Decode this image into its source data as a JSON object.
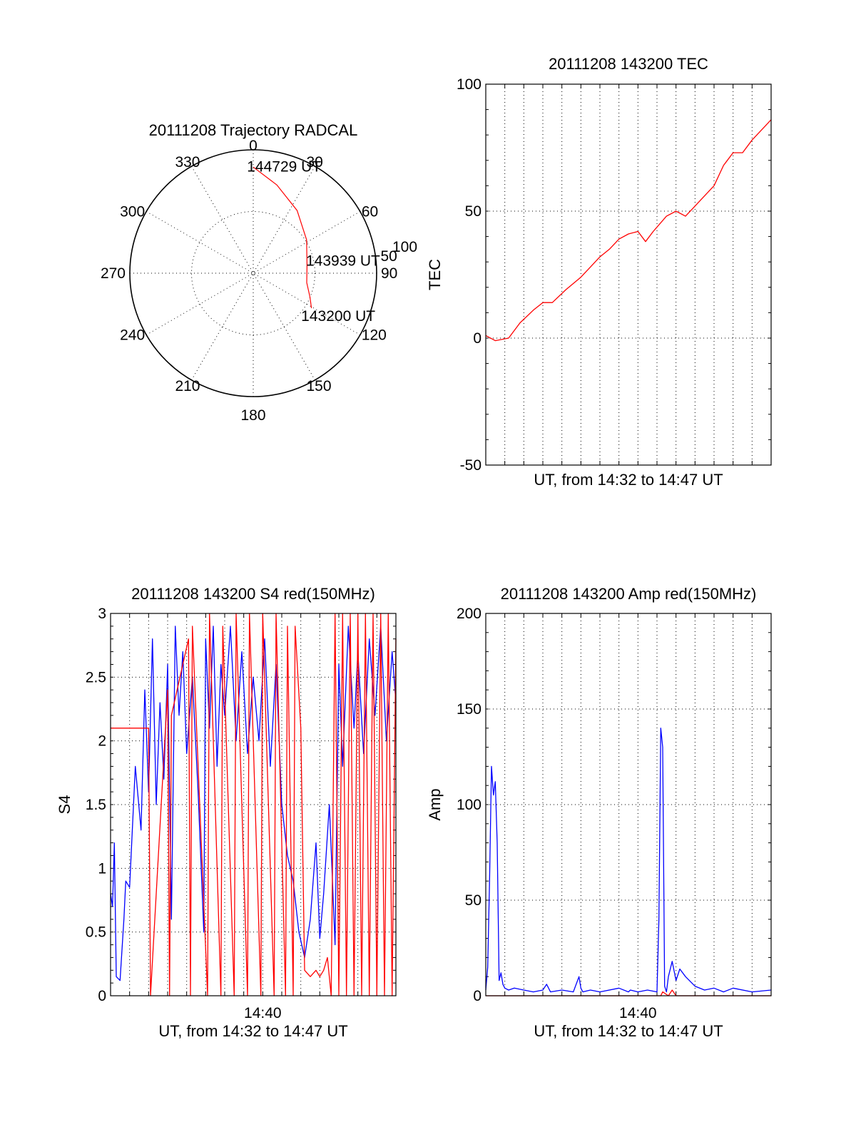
{
  "colors": {
    "red": "#ff0000",
    "blue": "#0000ff",
    "axis": "#000000"
  },
  "chart_data": [
    {
      "type": "polar",
      "title": "20111208 Trajectory RADCAL",
      "azimuth_labels": [
        "0",
        "30",
        "60",
        "90",
        "120",
        "150",
        "180",
        "210",
        "240",
        "270",
        "300",
        "330"
      ],
      "radial_labels": [
        "50",
        "100"
      ],
      "series": [
        {
          "color": "#ff0000",
          "points": [
            {
              "az": 0,
              "zen": 86
            },
            {
              "az": 15,
              "zen": 74
            },
            {
              "az": 35,
              "zen": 62
            },
            {
              "az": 58,
              "zen": 51
            },
            {
              "az": 82,
              "zen": 44
            },
            {
              "az": 100,
              "zen": 44
            },
            {
              "az": 113,
              "zen": 50
            },
            {
              "az": 121,
              "zen": 55
            }
          ]
        }
      ],
      "annotations": [
        {
          "text": "144729 UT",
          "az": 2,
          "zen": 87
        },
        {
          "text": "143939 UT",
          "az": 78,
          "zen": 52
        },
        {
          "text": "143200 UT",
          "az": 126,
          "zen": 58
        }
      ]
    },
    {
      "type": "line",
      "title": "20111208 143200 TEC",
      "xlabel": "UT, from 14:32 to 14:47 UT",
      "ylabel": "TEC",
      "xlim": [
        0,
        15
      ],
      "ylim": [
        -50,
        100
      ],
      "yticks": [
        "100",
        "50",
        "0",
        "-50"
      ],
      "series": [
        {
          "color": "#ff0000",
          "x": [
            0,
            0.5,
            1.2,
            1.8,
            2.5,
            3.0,
            3.5,
            4.2,
            5.0,
            5.5,
            6.0,
            6.5,
            7.0,
            7.5,
            8.0,
            8.4,
            8.8,
            9.5,
            10.0,
            10.5,
            11.0,
            11.5,
            12.0,
            12.5,
            13.0,
            13.5,
            14.0,
            14.5,
            15.0
          ],
          "y": [
            1,
            -1,
            0,
            6,
            11,
            14,
            14,
            19,
            24,
            28,
            32,
            35,
            39,
            41,
            42,
            38,
            42,
            48,
            50,
            48,
            52,
            56,
            60,
            68,
            73,
            73,
            78,
            82,
            86
          ]
        }
      ]
    },
    {
      "type": "line",
      "title": "20111208 143200 S4 red(150MHz)",
      "xlabel": "UT, from 14:32 to 14:47 UT",
      "ylabel": "S4",
      "xtick_labels": [
        "14:40"
      ],
      "xtick_values": [
        8
      ],
      "xlim": [
        0,
        15
      ],
      "ylim": [
        0,
        3
      ],
      "yticks": [
        "3",
        "2.5",
        "2",
        "1.5",
        "1",
        "0.5",
        "0"
      ],
      "series": [
        {
          "color": "#0000ff",
          "x": [
            0,
            0.1,
            0.2,
            0.3,
            0.5,
            0.7,
            0.8,
            1.0,
            1.3,
            1.6,
            1.8,
            2.0,
            2.2,
            2.4,
            2.6,
            2.8,
            3.0,
            3.2,
            3.4,
            3.6,
            3.8,
            4.0,
            4.3,
            4.6,
            4.9,
            5.0,
            5.2,
            5.4,
            5.6,
            5.8,
            6.0,
            6.3,
            6.6,
            6.9,
            7.2,
            7.5,
            7.8,
            8.1,
            8.4,
            8.7,
            9.0,
            9.3,
            9.6,
            9.9,
            10.2,
            10.5,
            10.8,
            11.0,
            11.2,
            11.5,
            11.8,
            12.0,
            12.2,
            12.5,
            12.8,
            13.0,
            13.3,
            13.6,
            13.9,
            14.2,
            14.5,
            14.8,
            15.0
          ],
          "y": [
            0.8,
            0.7,
            1.2,
            0.15,
            0.12,
            0.6,
            0.9,
            0.85,
            1.8,
            1.3,
            2.4,
            1.6,
            2.8,
            1.5,
            2.3,
            1.7,
            2.6,
            0.6,
            2.9,
            2.2,
            2.7,
            1.9,
            2.5,
            1.6,
            0.5,
            2.8,
            2.1,
            2.9,
            1.8,
            2.6,
            2.2,
            2.9,
            2.0,
            2.7,
            1.9,
            2.5,
            2.0,
            2.8,
            1.8,
            2.6,
            1.5,
            1.1,
            0.9,
            0.5,
            0.3,
            0.6,
            1.2,
            0.45,
            0.8,
            1.5,
            0.4,
            2.6,
            1.8,
            2.9,
            2.1,
            2.7,
            1.9,
            2.8,
            2.2,
            2.9,
            2.0,
            2.7,
            2.3
          ]
        },
        {
          "color": "#ff0000",
          "x": [
            0,
            2.0,
            2.1,
            3.0,
            3.1,
            3.2,
            4.1,
            4.2,
            4.3,
            5.1,
            5.2,
            5.8,
            5.9,
            6.5,
            6.6,
            7.2,
            7.3,
            7.9,
            8.0,
            8.6,
            8.7,
            9.2,
            9.3,
            9.6,
            9.7,
            10.0,
            10.2,
            10.5,
            10.8,
            11.0,
            11.2,
            11.4,
            11.6,
            11.8,
            12.0,
            12.2,
            12.4,
            12.6,
            12.8,
            13.0,
            13.2,
            13.4,
            13.6,
            13.8,
            14.0,
            14.2,
            14.4,
            14.6,
            14.8,
            15.0
          ],
          "y": [
            2.1,
            2.1,
            0,
            2.4,
            0,
            2.2,
            2.8,
            0,
            2.9,
            0,
            3.0,
            0,
            2.9,
            0,
            3.0,
            0,
            3.0,
            0,
            3.0,
            0,
            3.0,
            0,
            2.9,
            0,
            2.9,
            2.1,
            0.2,
            0.15,
            0.2,
            0.15,
            0.2,
            0.3,
            0,
            3.0,
            0,
            3.0,
            0,
            3.0,
            0,
            3.0,
            0,
            3.0,
            0,
            3.0,
            0,
            3.0,
            0,
            3.0,
            0,
            2.8
          ]
        }
      ]
    },
    {
      "type": "line",
      "title": "20111208 143200 Amp red(150MHz)",
      "xlabel": "UT, from 14:32 to 14:47 UT",
      "ylabel": "Amp",
      "xtick_labels": [
        "14:40"
      ],
      "xtick_values": [
        8
      ],
      "xlim": [
        0,
        15
      ],
      "ylim": [
        0,
        200
      ],
      "yticks": [
        "200",
        "150",
        "100",
        "50",
        "0"
      ],
      "series": [
        {
          "color": "#0000ff",
          "x": [
            0,
            0.1,
            0.2,
            0.3,
            0.4,
            0.5,
            0.6,
            0.7,
            0.8,
            0.9,
            1.0,
            1.2,
            1.5,
            2.0,
            2.5,
            3.0,
            3.2,
            3.4,
            4.0,
            4.6,
            4.9,
            5.0,
            5.1,
            5.5,
            6.0,
            7.0,
            7.5,
            7.6,
            8.0,
            8.5,
            9.0,
            9.1,
            9.2,
            9.3,
            9.4,
            9.5,
            9.6,
            9.8,
            10.0,
            10.2,
            10.5,
            11.0,
            11.5,
            12.0,
            12.5,
            13.0,
            14.0,
            15.0
          ],
          "y": [
            3,
            15,
            60,
            120,
            105,
            112,
            80,
            8,
            12,
            6,
            4,
            3,
            4,
            3,
            2,
            3,
            6,
            2,
            3,
            2,
            10,
            4,
            2,
            3,
            2,
            4,
            2,
            3,
            2,
            3,
            2,
            40,
            140,
            130,
            5,
            2,
            10,
            18,
            8,
            14,
            10,
            5,
            3,
            4,
            2,
            4,
            2,
            3
          ]
        },
        {
          "color": "#ff0000",
          "x": [
            0,
            9.2,
            9.3,
            9.6,
            9.8,
            10.0,
            15.0
          ],
          "y": [
            0,
            0,
            2,
            0,
            3,
            0,
            0
          ]
        }
      ]
    }
  ]
}
